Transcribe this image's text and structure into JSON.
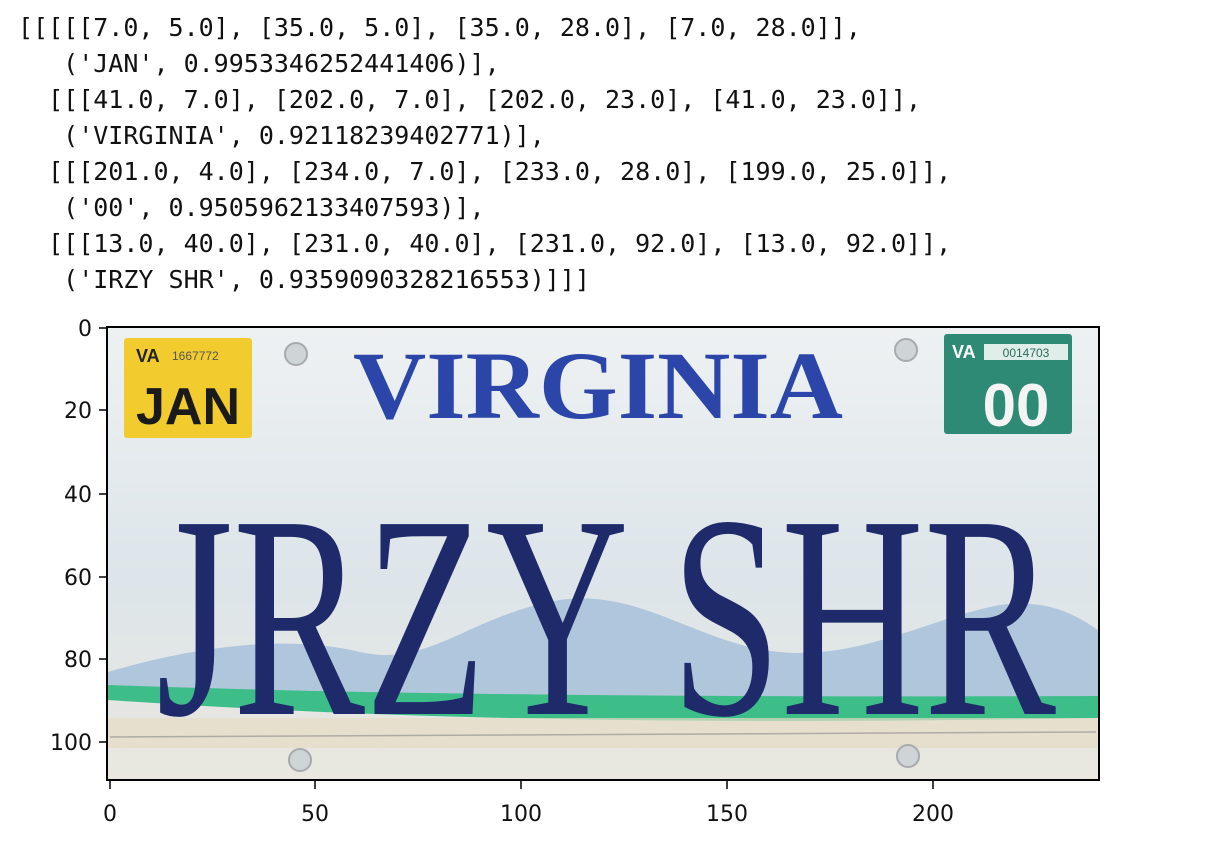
{
  "ocr_output": {
    "lines": [
      "[[[[[7.0, 5.0], [35.0, 5.0], [35.0, 28.0], [7.0, 28.0]],",
      "   ('JAN', 0.9953346252441406)],",
      "  [[[41.0, 7.0], [202.0, 7.0], [202.0, 23.0], [41.0, 23.0]],",
      "   ('VIRGINIA', 0.92118239402771)],",
      "  [[[201.0, 4.0], [234.0, 7.0], [233.0, 28.0], [199.0, 25.0]],",
      "   ('00', 0.9505962133407593)],",
      "  [[[13.0, 40.0], [231.0, 40.0], [231.0, 92.0], [13.0, 92.0]],",
      "   ('IRZY SHR', 0.9359090328216553)]]]"
    ]
  },
  "plot": {
    "x_ticks": [
      "0",
      "50",
      "100",
      "150",
      "200"
    ],
    "y_ticks": [
      "0",
      "20",
      "40",
      "60",
      "80",
      "100"
    ]
  },
  "plate": {
    "state": "VIRGINIA",
    "plate_text": "JRZY SHR",
    "month_decal": {
      "state": "VA",
      "serial": "1667772",
      "month": "JAN"
    },
    "year_decal": {
      "state": "VA",
      "serial": "0014703",
      "year": "00"
    },
    "colors": {
      "state_text": "#2b46a8",
      "plate_text": "#1f2a6b",
      "month_decal_bg": "#f2cc2e",
      "year_decal_bg": "#2e8a74",
      "stripe_green": "#3dbd88",
      "mountains": "#9fbbd8"
    }
  }
}
